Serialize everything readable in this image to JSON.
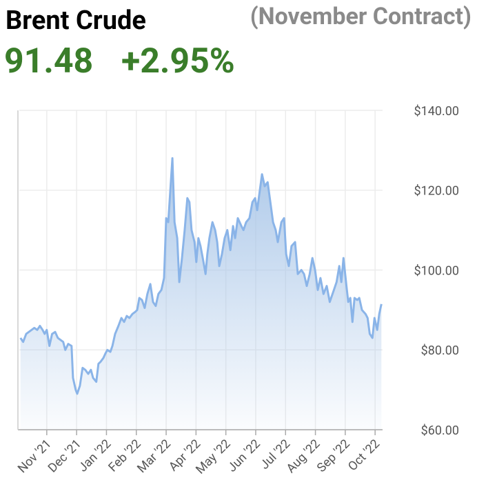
{
  "chart_data": {
    "type": "area",
    "title": "Brent Crude",
    "subtitle": "(November Contract)",
    "price": "91.48",
    "change": "+2.95%",
    "color": "#8ab4e8",
    "grid": true,
    "xlim": [
      0.08,
      12.25
    ],
    "xticks": [
      {
        "value": 1,
        "label": "Nov '21"
      },
      {
        "value": 2,
        "label": "Dec '21"
      },
      {
        "value": 3,
        "label": "Jan '22"
      },
      {
        "value": 4,
        "label": "Feb '22"
      },
      {
        "value": 5,
        "label": "Mar '22"
      },
      {
        "value": 6,
        "label": "Apr '22"
      },
      {
        "value": 7,
        "label": "May '22"
      },
      {
        "value": 8,
        "label": "Jun '22"
      },
      {
        "value": 9,
        "label": "Jul '22"
      },
      {
        "value": 10,
        "label": "Aug '22"
      },
      {
        "value": 11,
        "label": "Sep '22"
      },
      {
        "value": 12,
        "label": "Oct '22"
      }
    ],
    "ylim": [
      60,
      140
    ],
    "yticks": [
      {
        "value": 60,
        "label": "$60.00"
      },
      {
        "value": 80,
        "label": "$80.00"
      },
      {
        "value": 100,
        "label": "$100.00"
      },
      {
        "value": 120,
        "label": "$120.00"
      },
      {
        "value": 140,
        "label": "$140.00"
      }
    ],
    "x": [
      0.12,
      0.21,
      0.31,
      0.4,
      0.49,
      0.58,
      0.68,
      0.77,
      0.86,
      0.93,
      1.0,
      1.09,
      1.18,
      1.28,
      1.37,
      1.46,
      1.55,
      1.62,
      1.72,
      1.83,
      1.88,
      1.97,
      2.02,
      2.11,
      2.2,
      2.29,
      2.39,
      2.48,
      2.55,
      2.66,
      2.73,
      2.8,
      2.9,
      2.96,
      3.03,
      3.13,
      3.2,
      3.29,
      3.4,
      3.5,
      3.59,
      3.68,
      3.77,
      3.87,
      3.96,
      4.03,
      4.1,
      4.19,
      4.28,
      4.37,
      4.47,
      4.56,
      4.65,
      4.74,
      4.84,
      4.93,
      5.0,
      5.07,
      5.14,
      5.21,
      5.28,
      5.37,
      5.44,
      5.53,
      5.62,
      5.71,
      5.78,
      5.85,
      5.95,
      6.01,
      6.08,
      6.15,
      6.25,
      6.32,
      6.38,
      6.45,
      6.55,
      6.64,
      6.71,
      6.78,
      6.87,
      6.96,
      7.05,
      7.15,
      7.24,
      7.31,
      7.4,
      7.52,
      7.59,
      7.68,
      7.79,
      7.89,
      7.98,
      8.05,
      8.12,
      8.21,
      8.3,
      8.4,
      8.49,
      8.58,
      8.67,
      8.74,
      8.86,
      8.95,
      9.02,
      9.11,
      9.2,
      9.32,
      9.41,
      9.53,
      9.62,
      9.71,
      9.81,
      9.9,
      9.99,
      10.08,
      10.17,
      10.27,
      10.38,
      10.48,
      10.62,
      10.71,
      10.8,
      10.87,
      10.94,
      11.04,
      11.1,
      11.17,
      11.24,
      11.31,
      11.4,
      11.47,
      11.56,
      11.68,
      11.75,
      11.82,
      11.91,
      11.98,
      12.07,
      12.14,
      12.21
    ],
    "values": [
      83,
      82,
      84,
      84.5,
      85,
      85.5,
      85,
      86,
      85,
      84,
      85,
      81,
      84,
      84.5,
      83,
      82.5,
      82,
      80,
      81.5,
      81,
      73,
      70,
      69,
      71,
      75.5,
      75,
      74,
      75,
      73,
      72,
      76.5,
      77,
      78,
      79,
      80,
      79.5,
      81,
      84,
      86,
      88,
      87,
      88.5,
      88,
      89,
      89.5,
      90,
      93,
      92.5,
      90.5,
      94,
      96.5,
      92,
      91,
      94,
      95,
      98,
      113,
      112,
      120,
      128,
      112,
      108,
      97,
      103,
      110,
      118,
      117,
      110,
      107,
      102,
      108,
      106,
      102,
      99,
      104,
      108,
      112,
      110,
      107,
      101,
      104,
      108,
      110,
      105,
      111,
      108,
      113,
      111,
      110,
      112,
      113,
      117,
      118,
      115,
      119,
      124,
      121,
      122,
      117,
      112,
      110,
      107,
      112,
      113,
      104,
      101,
      106,
      107,
      99,
      100,
      99,
      96,
      99,
      103,
      100,
      95,
      98,
      94,
      96,
      92,
      95,
      97,
      101,
      97,
      103,
      96,
      92,
      93,
      87,
      93,
      92.5,
      93,
      90,
      89,
      88,
      84,
      83,
      88,
      85,
      89,
      91.48
    ]
  }
}
